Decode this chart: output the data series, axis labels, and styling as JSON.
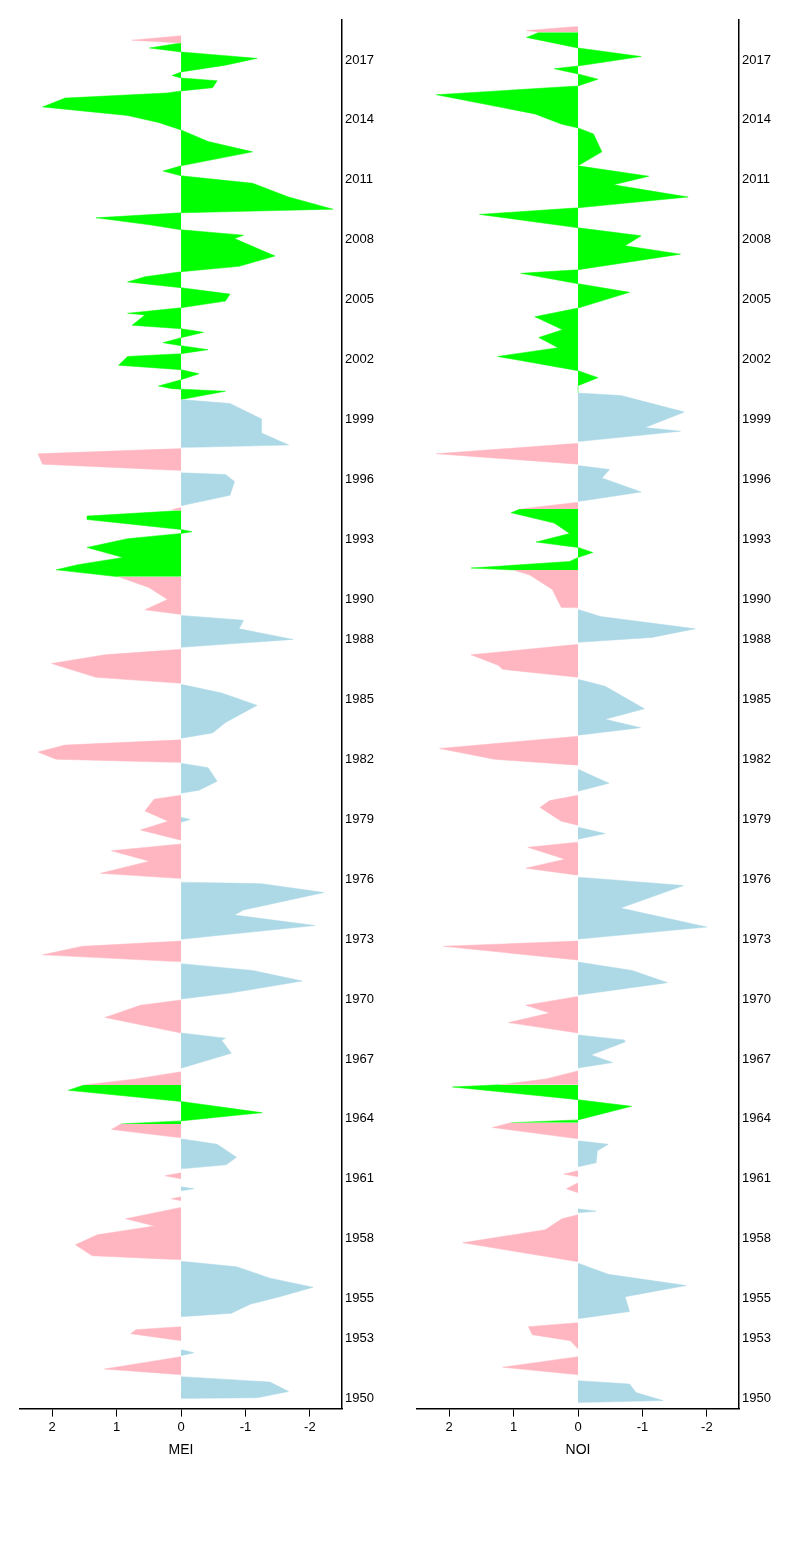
{
  "chart_data": [
    {
      "type": "area",
      "orientation": "horizontal",
      "xlabel": "MEI",
      "xlim": [
        2.5,
        -2.5
      ],
      "xticks": [
        2,
        1,
        0,
        -1,
        -2
      ],
      "ylim": [
        1949.5,
        2019
      ],
      "yticks": [
        1950,
        1953,
        1955,
        1958,
        1961,
        1964,
        1967,
        1970,
        1973,
        1976,
        1979,
        1982,
        1985,
        1988,
        1990,
        1993,
        1996,
        1999,
        2002,
        2005,
        2008,
        2011,
        2014,
        2017
      ],
      "grid": false,
      "legend": false,
      "series": [
        {
          "color": "#ffb6c1",
          "x": [
            1951.2,
            1951.48,
            1952.1,
            null,
            1952.9,
            1953.25,
            1953.45,
            1953.6,
            null,
            1956.95,
            1957.15,
            1957.7,
            1958.2,
            1958.64,
            1959.0,
            1959.57,
            null,
            1959.9,
            1960.0,
            1960.1,
            null,
            1961.0,
            1961.15,
            1961.3,
            null,
            1963.05,
            1963.47,
            1963.75,
            null,
            1965.7,
            1966.0,
            1966.36,
            null,
            1968.3,
            1969.08,
            1969.69,
            1969.95,
            null,
            1971.86,
            1972.21,
            1972.64,
            1972.9,
            null,
            1976.03,
            1976.29,
            1976.9,
            1977.42,
            1977.76,
            null,
            1977.95,
            1978.46,
            1978.9,
            1979.41,
            1980.0,
            1980.2,
            null,
            1981.84,
            1982.0,
            1982.36,
            1982.71,
            1982.97,
            null,
            1985.8,
            1986.1,
            1986.79,
            1987.23,
            1987.5,
            null,
            1989.25,
            1989.48,
            1990.0,
            1990.6,
            1991.13,
            null,
            1994.45,
            1994.5,
            1994.6,
            null,
            1996.45,
            1996.77,
            1997.29,
            1997.55,
            null,
            2017.85,
            2017.99,
            2018.21
          ],
          "values": [
            0,
            1.19,
            0,
            null,
            0,
            0.78,
            0.7,
            0,
            null,
            0,
            1.38,
            1.64,
            1.3,
            0.41,
            0.86,
            0,
            null,
            0,
            0.15,
            0,
            null,
            0,
            0.25,
            0,
            null,
            0,
            1.08,
            0.93,
            null,
            1.5,
            0.7,
            0,
            null,
            0,
            1.18,
            0.63,
            0,
            null,
            0,
            2.15,
            1.53,
            0,
            null,
            0,
            1.25,
            0.49,
            1.08,
            0,
            null,
            0,
            0.63,
            0.2,
            0.56,
            0.42,
            0,
            null,
            0,
            1.94,
            2.22,
            1.8,
            0,
            null,
            0,
            1.32,
            2.01,
            1.18,
            0,
            null,
            0,
            0.56,
            0.21,
            0.5,
            0.97,
            null,
            0,
            0.14,
            0,
            null,
            0,
            2.15,
            2.22,
            0,
            null,
            0,
            0.76,
            0
          ]
        },
        {
          "color": "#add8e6",
          "x": [
            1950.0,
            1950.05,
            1950.36,
            1950.83,
            1951.1,
            null,
            1952.15,
            1952.3,
            1952.45,
            null,
            1954.1,
            1954.27,
            1954.73,
            1955.1,
            1955.57,
            1956.03,
            1956.6,
            1956.87,
            null,
            1960.4,
            1960.5,
            1960.6,
            null,
            1961.5,
            1961.7,
            1962.08,
            1962.73,
            1963.0,
            null,
            1966.54,
            1967.29,
            1967.94,
            1968.04,
            1968.3,
            null,
            1970.0,
            1970.3,
            1970.9,
            1971.43,
            1971.77,
            null,
            1972.99,
            1973.68,
            1974.2,
            1974.46,
            1975.33,
            1975.77,
            1975.85,
            null,
            1978.85,
            1978.98,
            1979.1,
            null,
            1980.3,
            1980.45,
            1980.9,
            1981.58,
            1981.8,
            null,
            1983.05,
            1983.32,
            1983.84,
            1984.7,
            1985.32,
            1985.75,
            null,
            1987.6,
            1988.0,
            1988.53,
            1988.96,
            1989.2,
            null,
            1994.69,
            1995.21,
            1995.9,
            1996.25,
            1996.34,
            null,
            1997.6,
            1997.73,
            1998.33,
            1999.03,
            1999.81,
            2000.0
          ],
          "values": [
            0,
            -1.2,
            -1.67,
            -1.38,
            0,
            null,
            0,
            -0.2,
            0,
            null,
            0,
            -0.78,
            -1.08,
            -1.53,
            -2.05,
            -1.38,
            -0.86,
            0,
            null,
            0,
            -0.2,
            0,
            null,
            0,
            -0.7,
            -0.86,
            -0.56,
            0,
            null,
            0,
            -0.78,
            -0.63,
            -0.69,
            0,
            null,
            0,
            -0.76,
            -1.88,
            -1.11,
            0,
            null,
            0,
            -2.08,
            -0.83,
            -0.97,
            -2.22,
            -1.25,
            0,
            null,
            0,
            -0.14,
            0,
            null,
            0,
            -0.28,
            -0.56,
            -0.42,
            0,
            null,
            0,
            -0.49,
            -0.69,
            -1.18,
            -0.63,
            0,
            null,
            0,
            -1.74,
            -0.9,
            -0.97,
            0,
            null,
            0,
            -0.76,
            -0.83,
            -0.69,
            0,
            null,
            0,
            -1.67,
            -1.25,
            -1.25,
            -0.76,
            0
          ]
        },
        {
          "color": "#00ff00",
          "x": [
            1963.75,
            1963.9,
            1964.31,
            1964.87,
            1965.43,
            1965.7,
            null,
            1991.13,
            1991.48,
            1991.74,
            1992.1,
            1992.6,
            1993.04,
            1993.3,
            1993.39,
            1993.5,
            1994.0,
            1994.17,
            1994.45,
            null,
            2000.0,
            2000.42,
            2000.55,
            2000.68,
            2001.0,
            2001.29,
            2001.5,
            2001.72,
            2002.16,
            2002.3,
            2002.5,
            2002.7,
            2002.85,
            2003.1,
            2003.37,
            2003.55,
            2003.72,
            2004.24,
            2004.32,
            2004.6,
            2004.93,
            2005.28,
            2005.6,
            2005.89,
            2006.15,
            2006.4,
            2006.67,
            2007.19,
            2008.06,
            2008.23,
            2008.5,
            2008.75,
            2009.1,
            2009.35,
            2009.53,
            2010.14,
            2010.83,
            2011.2,
            2011.44,
            2011.7,
            2012.4,
            2012.92,
            2013.5,
            2013.87,
            2014.22,
            2014.65,
            2015.09,
            2015.35,
            2015.45,
            2015.61,
            2015.96,
            2016.1,
            2016.22,
            2016.4,
            2016.74,
            2017.08,
            2017.4,
            2017.6,
            2017.85
          ],
          "values": [
            0.93,
            0,
            -1.26,
            0,
            1.75,
            1.5,
            null,
            0.97,
            1.94,
            1.6,
            0.9,
            1.46,
            0.83,
            0,
            -0.17,
            0,
            1.46,
            1.46,
            0,
            null,
            0,
            -0.69,
            0.14,
            0.35,
            0,
            -0.28,
            0,
            0.97,
            0.83,
            0,
            -0.42,
            0,
            0.28,
            0,
            -0.35,
            0,
            0.76,
            0.56,
            0.83,
            0,
            -0.69,
            -0.76,
            0,
            0.83,
            0.56,
            0,
            -0.9,
            -1.46,
            -0.83,
            -0.97,
            0,
            0.49,
            1.32,
            0,
            -2.36,
            -1.67,
            -1.11,
            0,
            0.28,
            0,
            -1.11,
            -0.42,
            0,
            0.35,
            0.83,
            2.15,
            1.8,
            0.21,
            0,
            -0.49,
            -0.56,
            0,
            0.14,
            0,
            -0.69,
            -1.18,
            0,
            0.49,
            0
          ]
        }
      ]
    },
    {
      "type": "area",
      "orientation": "horizontal",
      "xlabel": "NOI",
      "xlim": [
        2.5,
        -2.5
      ],
      "xticks": [
        2,
        1,
        0,
        -1,
        -2
      ],
      "ylim": [
        1949.5,
        2019
      ],
      "yticks": [
        1950,
        1953,
        1955,
        1958,
        1961,
        1964,
        1967,
        1970,
        1973,
        1976,
        1979,
        1982,
        1985,
        1988,
        1990,
        1993,
        1996,
        1999,
        2002,
        2005,
        2008,
        2011,
        2014,
        2017
      ],
      "grid": false,
      "legend": false,
      "series": [
        {
          "color": "#ffb6c1",
          "x": [
            1951.2,
            1951.57,
            1952.1,
            null,
            1952.5,
            1952.9,
            1953.2,
            1953.6,
            1953.8,
            null,
            1956.85,
            1957.8,
            1958.45,
            1959.0,
            1959.2,
            null,
            1960.3,
            1960.5,
            1960.8,
            null,
            1961.1,
            1961.24,
            1961.4,
            null,
            1963.0,
            1963.57,
            1963.81,
            null,
            1965.71,
            1966.0,
            1966.4,
            null,
            1968.3,
            1968.82,
            1969.3,
            1969.69,
            1970.13,
            null,
            1971.95,
            1972.64,
            1972.9,
            null,
            1976.2,
            1976.55,
            1977.0,
            1977.59,
            1977.85,
            null,
            1978.7,
            1978.9,
            1979.59,
            1979.93,
            1980.2,
            null,
            1981.7,
            1982.0,
            1982.54,
            1983.15,
            null,
            1986.1,
            1986.5,
            1986.7,
            1987.23,
            1987.75,
            null,
            1989.58,
            1989.6,
            1990.5,
            1991.22,
            1991.47,
            null,
            1994.52,
            1994.86,
            null,
            1996.77,
            1997.29,
            1997.81,
            null,
            2018.39,
            2018.47,
            2018.68
          ],
          "values": [
            0,
            1.17,
            0,
            null,
            0,
            0.12,
            0.71,
            0.77,
            0,
            null,
            0,
            1.79,
            0.51,
            0.25,
            0,
            null,
            0,
            0.18,
            0,
            null,
            0,
            0.22,
            0,
            null,
            0,
            1.33,
            1.04,
            null,
            1.2,
            0.5,
            0,
            null,
            0,
            1.08,
            0.44,
            0.81,
            0,
            null,
            0,
            2.09,
            0,
            null,
            0,
            0.81,
            0.2,
            0.78,
            0,
            null,
            0,
            0.26,
            0.59,
            0.44,
            0,
            null,
            0,
            1.3,
            2.15,
            0,
            null,
            0,
            1.17,
            1.24,
            1.66,
            0,
            null,
            0,
            0.26,
            0.4,
            0.75,
            1.0,
            null,
            0.9,
            0,
            null,
            0,
            2.2,
            0,
            null,
            0.6,
            0.8,
            0
          ]
        },
        {
          "color": "#add8e6",
          "x": [
            1949.8,
            1949.9,
            1950.3,
            1950.73,
            1950.9,
            null,
            1954.0,
            1954.36,
            1955.1,
            1955.66,
            1956.22,
            1956.78,
            null,
            1959.3,
            1959.38,
            1959.5,
            null,
            1961.6,
            1961.8,
            1962.4,
            1962.73,
            1962.9,
            null,
            1966.55,
            1966.82,
            1967.2,
            1967.85,
            1967.95,
            1968.2,
            null,
            1970.2,
            1970.82,
            1971.43,
            1971.85,
            null,
            1973.0,
            1973.6,
            1974.55,
            1975.68,
            1976.1,
            null,
            1978.0,
            1978.28,
            1978.6,
            null,
            1980.4,
            1980.8,
            1981.5,
            null,
            1983.2,
            1983.58,
            1984.0,
            1984.53,
            1985.66,
            1986.0,
            null,
            1987.85,
            1988.1,
            1988.53,
            1989.14,
            1989.5,
            null,
            1994.9,
            1995.38,
            1996.08,
            1996.5,
            1996.7,
            null,
            1997.9,
            1998.42,
            1998.6,
            1999.38,
            2000.2,
            2000.33
          ],
          "values": [
            0,
            -1.32,
            -0.9,
            -0.8,
            0,
            null,
            0,
            -0.8,
            -0.73,
            -1.68,
            -0.47,
            0,
            null,
            0,
            -0.28,
            0,
            null,
            0,
            -0.28,
            -0.3,
            -0.47,
            0,
            null,
            0,
            -0.54,
            -0.2,
            -0.73,
            -0.72,
            0,
            null,
            0,
            -1.39,
            -0.84,
            0,
            null,
            0,
            -2.0,
            -0.66,
            -1.64,
            0,
            null,
            0,
            -0.42,
            0,
            null,
            0,
            -0.48,
            0,
            null,
            0,
            -0.97,
            -0.42,
            -1.03,
            -0.42,
            0,
            null,
            0,
            -1.15,
            -1.82,
            -0.35,
            0,
            null,
            0,
            -0.98,
            -0.37,
            -0.49,
            0,
            null,
            0,
            -1.59,
            -1.04,
            -1.65,
            -0.67,
            0
          ]
        },
        {
          "color": "#00ff00",
          "x": [
            1963.81,
            1963.95,
            1964.63,
            1964.96,
            1965.6,
            1965.71,
            null,
            1991.47,
            1991.57,
            1991.9,
            1992.1,
            1992.35,
            1992.6,
            1992.87,
            1993.3,
            1993.82,
            1994.34,
            1994.52,
            null,
            2000.33,
            2000.7,
            2001.1,
            2001.45,
            2002.16,
            2002.6,
            2003.11,
            2003.5,
            2004.15,
            2004.58,
            2005.37,
            2005.8,
            2006.32,
            2006.5,
            2007.28,
            2007.7,
            2008.2,
            2008.6,
            2009.27,
            2009.6,
            2010.14,
            2010.75,
            2011.18,
            2011.7,
            2012.4,
            2013.3,
            2013.6,
            2013.79,
            2014.3,
            2015.26,
            2015.7,
            2016.04,
            2016.3,
            2016.56,
            2016.7,
            2017.17,
            2017.6,
            2018.13,
            2018.39
          ],
          "values": [
            1.04,
            0,
            -0.83,
            0,
            1.95,
            1.2,
            null,
            1.0,
            1.66,
            0.13,
            0,
            -0.23,
            0,
            0.65,
            0.13,
            0.37,
            1.04,
            0.9,
            null,
            0,
            0,
            -0.31,
            0,
            1.25,
            0.31,
            0.61,
            0.24,
            0.67,
            0,
            -0.8,
            0,
            0.89,
            0,
            -1.59,
            -0.73,
            -0.98,
            0,
            1.53,
            0,
            -1.71,
            -0.55,
            -1.1,
            0,
            -0.37,
            -0.24,
            0,
            0.26,
            0.67,
            2.2,
            0,
            -0.31,
            0,
            0.37,
            0,
            -0.98,
            0,
            0.8,
            0.6
          ]
        }
      ]
    }
  ]
}
